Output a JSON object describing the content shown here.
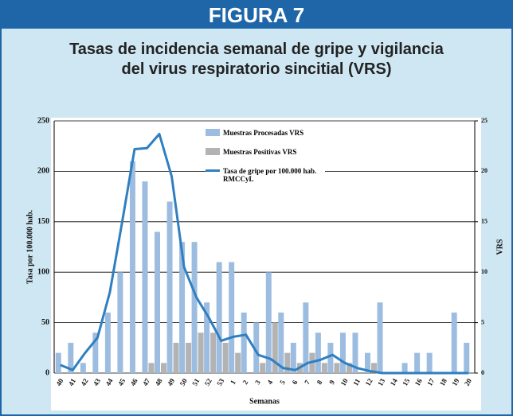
{
  "chart_data": {
    "type": "bar",
    "header": "FIGURA 7",
    "title_lines": [
      "Tasas de incidencia semanal de gripe y vigilancia",
      "del virus respiratorio sincitial (VRS)"
    ],
    "y_label": "Tasa por 100.000 hab.",
    "y2_label": "VRS",
    "x_label": "Semanas",
    "categories": [
      "40",
      "41",
      "42",
      "43",
      "44",
      "45",
      "46",
      "47",
      "48",
      "49",
      "50",
      "51",
      "52",
      "53",
      "1",
      "2",
      "3",
      "4",
      "5",
      "6",
      "7",
      "8",
      "9",
      "10",
      "11",
      "12",
      "13",
      "14",
      "15",
      "16",
      "17",
      "18",
      "19",
      "20"
    ],
    "series": [
      {
        "name": "Muestras Procesadas VRS",
        "type": "bar",
        "axis": "y2",
        "color": "#9dbde0",
        "values": [
          2,
          3,
          1,
          4,
          6,
          10,
          21,
          19,
          14,
          17,
          13,
          13,
          7,
          11,
          11,
          6,
          5,
          10,
          6,
          3,
          7,
          4,
          3,
          4,
          4,
          2,
          7,
          0,
          1,
          2,
          2,
          0,
          6,
          3
        ]
      },
      {
        "name": "Muestras Positivas VRS",
        "type": "bar",
        "axis": "y2",
        "color": "#b3b3b3",
        "values": [
          0,
          0,
          0,
          0,
          0,
          0,
          0,
          1,
          1,
          3,
          3,
          4,
          4,
          3,
          2,
          0,
          1,
          5,
          2,
          1,
          2,
          1,
          1,
          1,
          0,
          1,
          0,
          0,
          0,
          0,
          0,
          0,
          0,
          0
        ]
      },
      {
        "name": "Tasa de gripe por 100.000 hab. RMCCyL",
        "type": "line",
        "axis": "y",
        "color": "#2f7fc1",
        "values": [
          8,
          3,
          20,
          35,
          80,
          150,
          222,
          223,
          237,
          195,
          105,
          75,
          55,
          32,
          36,
          38,
          18,
          14,
          5,
          3,
          10,
          13,
          18,
          10,
          5,
          2,
          0,
          0,
          0,
          0,
          0,
          0,
          0,
          0
        ]
      }
    ],
    "ylim": [
      0,
      250
    ],
    "yticks": [
      0,
      50,
      100,
      150,
      200,
      250
    ],
    "y2lim": [
      0,
      25
    ],
    "y2ticks": [
      0,
      5,
      10,
      15,
      20,
      25
    ]
  }
}
